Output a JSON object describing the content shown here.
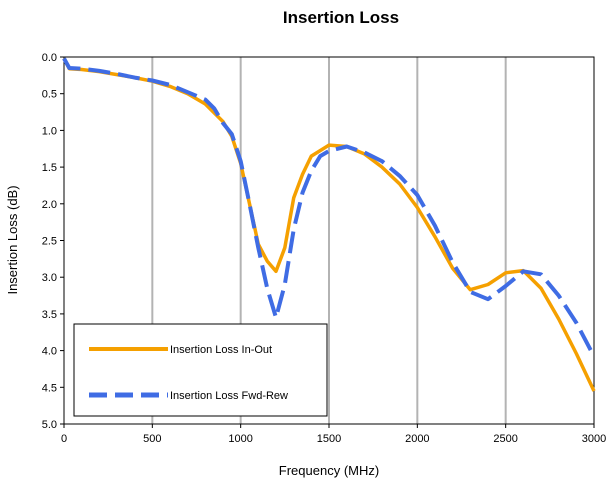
{
  "chart_data": {
    "type": "line",
    "title": "Insertion Loss",
    "xlabel": "Frequency (MHz)",
    "ylabel": "Insertion Loss (dB)",
    "xlim": [
      0,
      3000
    ],
    "ylim": [
      0,
      5
    ],
    "y_inverted": true,
    "x_ticks": [
      "0",
      "500",
      "1000",
      "1500",
      "2000",
      "2500",
      "3000"
    ],
    "y_ticks": [
      "0.0",
      "0.5",
      "1.0",
      "1.5",
      "2.0",
      "2.5",
      "3.0",
      "3.5",
      "4.0",
      "4.5",
      "5.0"
    ],
    "grid": {
      "vertical": true,
      "horizontal": false
    },
    "legend_position": "bottom-left",
    "series": [
      {
        "name": "Insertion Loss In-Out",
        "color": "#f5a000",
        "style": "solid",
        "points": [
          [
            0,
            0.02
          ],
          [
            30,
            0.16
          ],
          [
            100,
            0.17
          ],
          [
            200,
            0.2
          ],
          [
            300,
            0.24
          ],
          [
            400,
            0.28
          ],
          [
            500,
            0.33
          ],
          [
            600,
            0.4
          ],
          [
            700,
            0.5
          ],
          [
            800,
            0.64
          ],
          [
            900,
            0.88
          ],
          [
            950,
            1.08
          ],
          [
            1000,
            1.45
          ],
          [
            1050,
            2.0
          ],
          [
            1100,
            2.55
          ],
          [
            1150,
            2.78
          ],
          [
            1200,
            2.92
          ],
          [
            1250,
            2.6
          ],
          [
            1300,
            1.92
          ],
          [
            1350,
            1.6
          ],
          [
            1400,
            1.35
          ],
          [
            1500,
            1.2
          ],
          [
            1600,
            1.22
          ],
          [
            1700,
            1.32
          ],
          [
            1800,
            1.5
          ],
          [
            1900,
            1.73
          ],
          [
            2000,
            2.05
          ],
          [
            2100,
            2.45
          ],
          [
            2200,
            2.88
          ],
          [
            2300,
            3.17
          ],
          [
            2400,
            3.1
          ],
          [
            2500,
            2.94
          ],
          [
            2600,
            2.91
          ],
          [
            2700,
            3.15
          ],
          [
            2800,
            3.57
          ],
          [
            2900,
            4.04
          ],
          [
            3000,
            4.55
          ]
        ]
      },
      {
        "name": "Insertion Loss Fwd-Rew",
        "color": "#3f6ce4",
        "style": "dashed",
        "points": [
          [
            0,
            0.02
          ],
          [
            30,
            0.15
          ],
          [
            100,
            0.16
          ],
          [
            200,
            0.19
          ],
          [
            300,
            0.23
          ],
          [
            400,
            0.28
          ],
          [
            500,
            0.32
          ],
          [
            600,
            0.38
          ],
          [
            700,
            0.48
          ],
          [
            800,
            0.58
          ],
          [
            850,
            0.7
          ],
          [
            900,
            0.9
          ],
          [
            950,
            1.05
          ],
          [
            1000,
            1.42
          ],
          [
            1050,
            2.0
          ],
          [
            1100,
            2.6
          ],
          [
            1150,
            3.15
          ],
          [
            1200,
            3.55
          ],
          [
            1250,
            3.1
          ],
          [
            1300,
            2.35
          ],
          [
            1350,
            1.85
          ],
          [
            1400,
            1.55
          ],
          [
            1450,
            1.35
          ],
          [
            1500,
            1.28
          ],
          [
            1600,
            1.22
          ],
          [
            1700,
            1.3
          ],
          [
            1800,
            1.42
          ],
          [
            1900,
            1.62
          ],
          [
            2000,
            1.88
          ],
          [
            2100,
            2.3
          ],
          [
            2200,
            2.8
          ],
          [
            2300,
            3.2
          ],
          [
            2400,
            3.3
          ],
          [
            2500,
            3.12
          ],
          [
            2600,
            2.92
          ],
          [
            2700,
            2.96
          ],
          [
            2800,
            3.25
          ],
          [
            2900,
            3.62
          ],
          [
            3000,
            4.08
          ]
        ]
      }
    ]
  }
}
